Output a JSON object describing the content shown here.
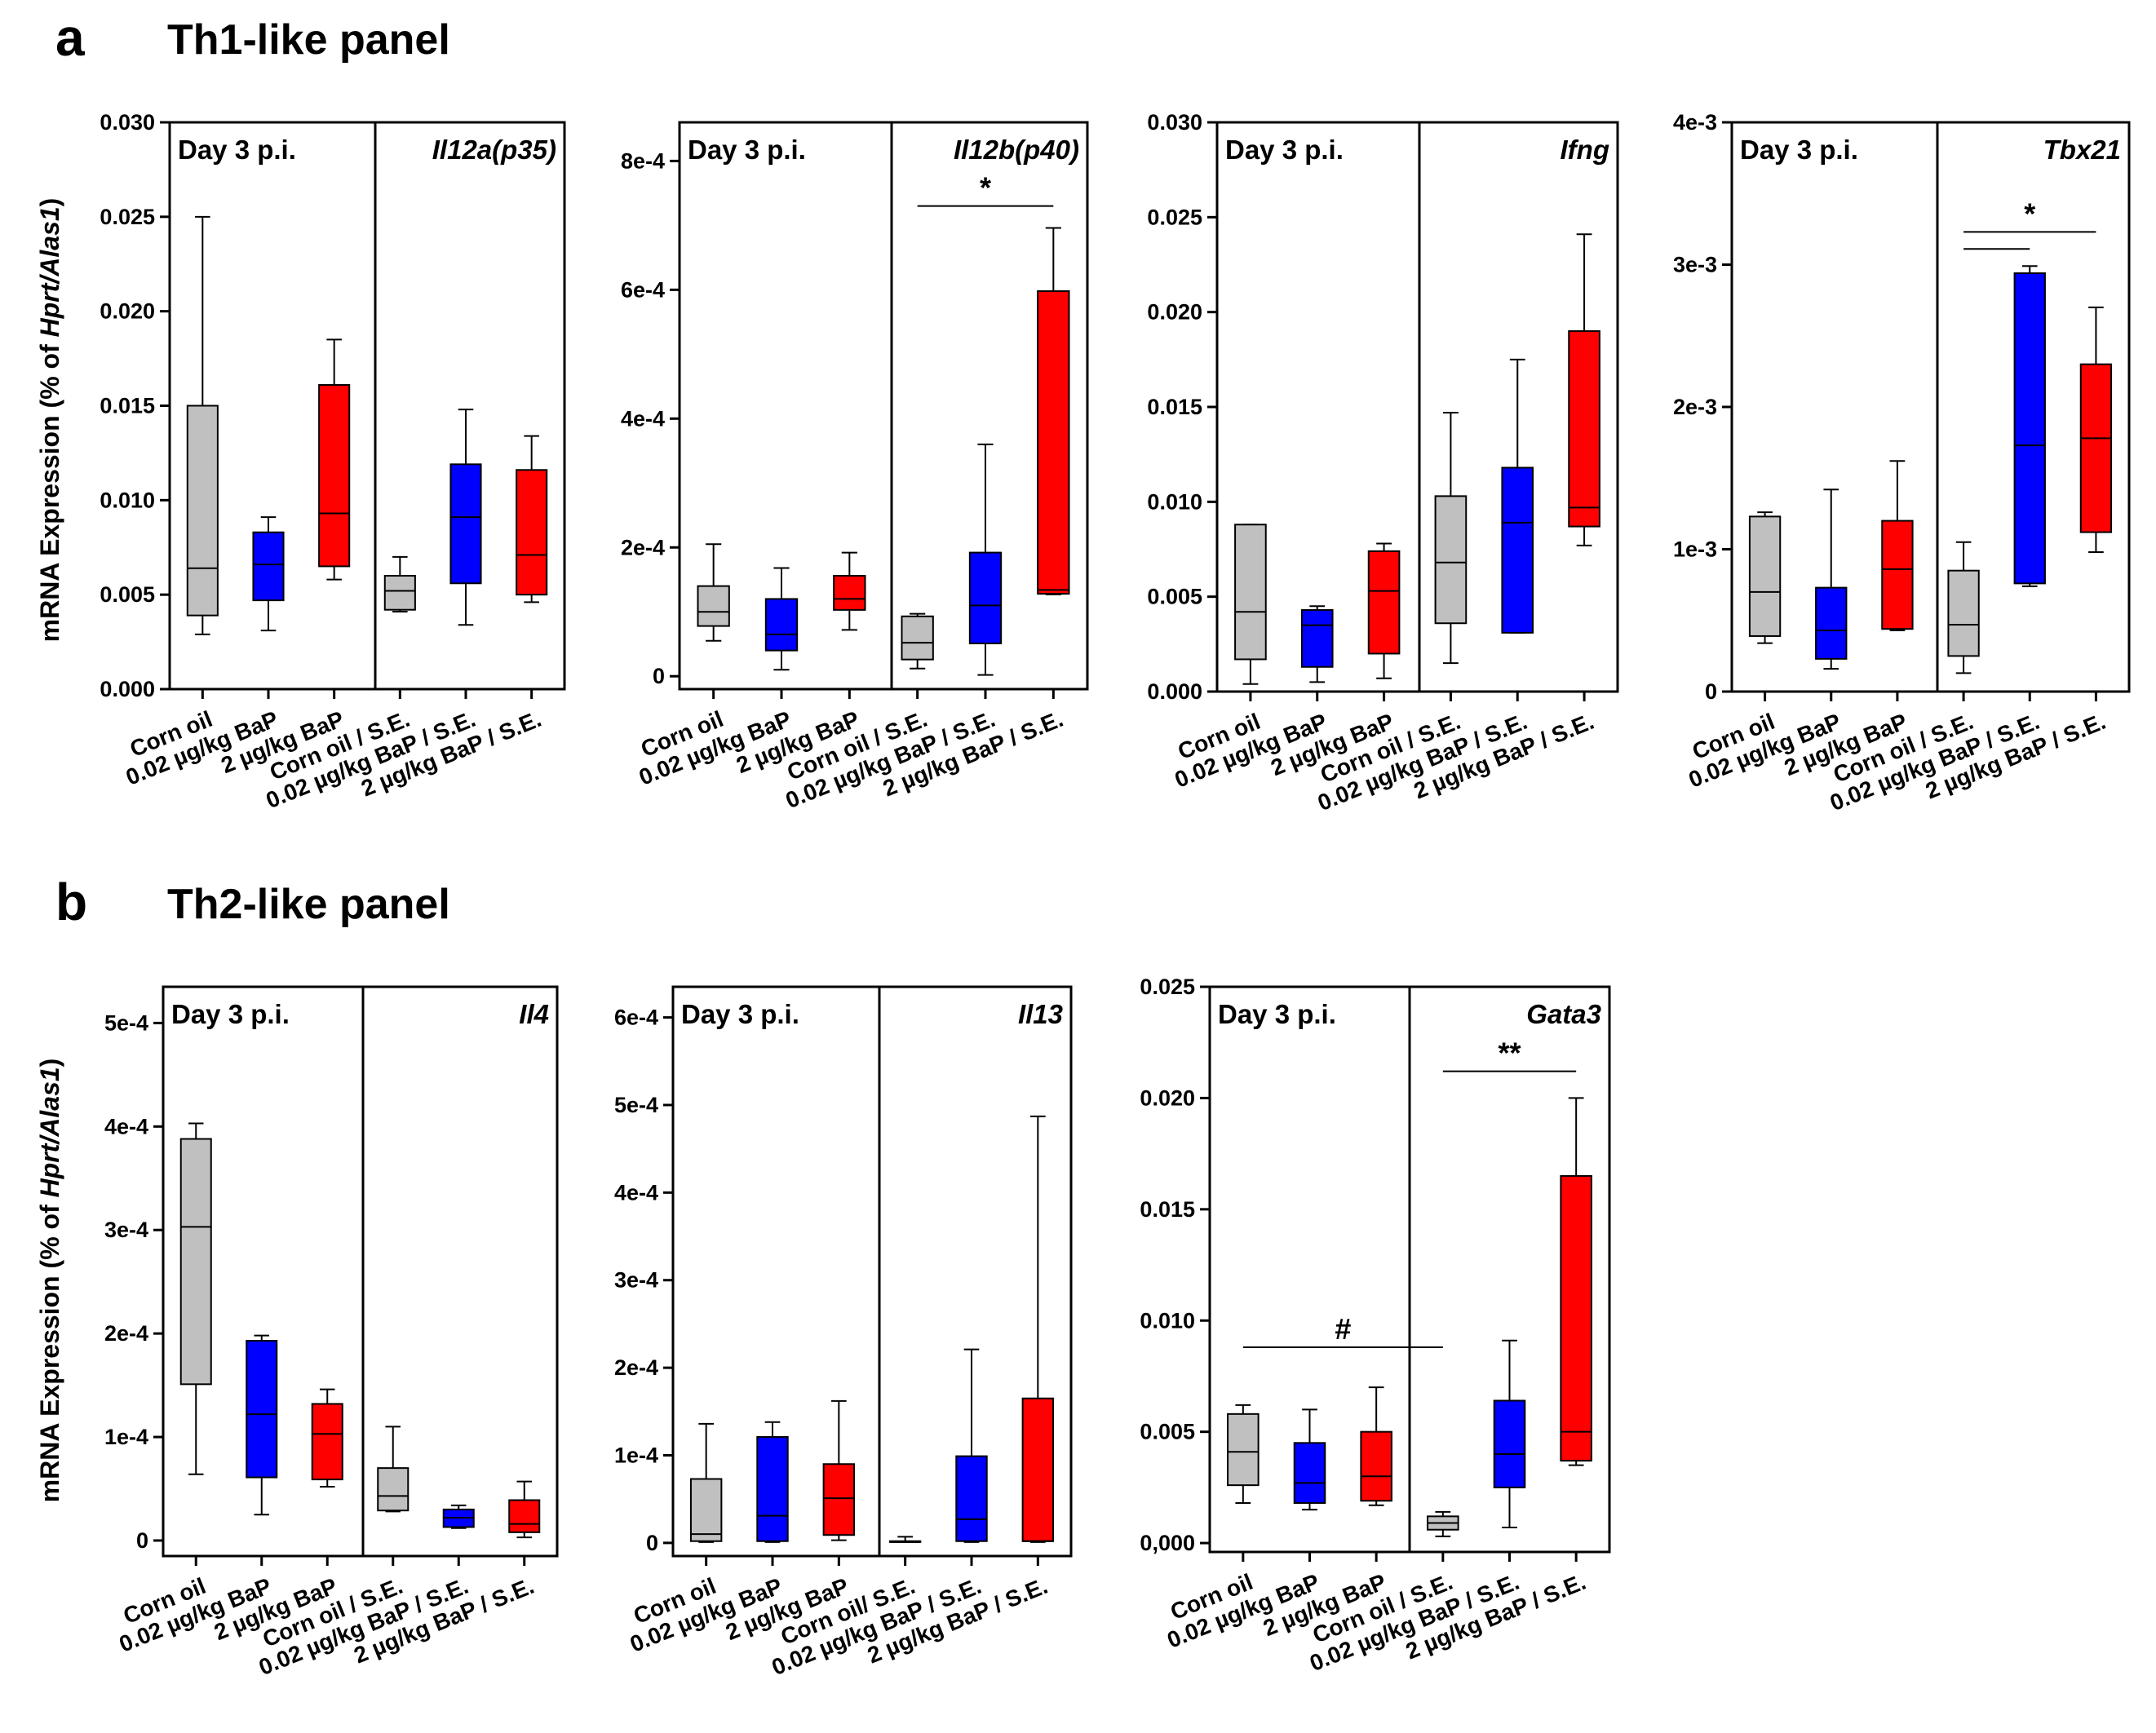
{
  "figure": {
    "panel_a": {
      "letter": "a",
      "title": "Th1-like panel"
    },
    "panel_b": {
      "letter": "b",
      "title": "Th2-like panel"
    },
    "ylabel": {
      "pre": "mRNA Expression (% of ",
      "italic": "Hprt/Alas1",
      "post": ")"
    },
    "colors": {
      "gray": "#c0c0c0",
      "blue": "#0000ff",
      "red": "#ff0000"
    }
  },
  "chart_data": [
    {
      "type": "box",
      "id": "il12a",
      "title": "Il12a(p35)",
      "day_label": "Day 3 p.i.",
      "ylim": [
        0,
        0.03
      ],
      "yticks": [
        0,
        0.005,
        0.01,
        0.015,
        0.02,
        0.025,
        0.03
      ],
      "ytick_labels": [
        "0.000",
        "0.005",
        "0.010",
        "0.015",
        "0.020",
        "0.025",
        "0.030"
      ],
      "categories": [
        "Corn oil",
        "0.02 µg/kg BaP",
        "2 µg/kg BaP",
        "Corn oil / S.E.",
        "0.02 µg/kg BaP / S.E.",
        "2 µg/kg BaP / S.E."
      ],
      "boxes": [
        {
          "min": 0.0029,
          "q1": 0.0039,
          "median": 0.0064,
          "q3": 0.015,
          "max": 0.025,
          "color": "gray"
        },
        {
          "min": 0.0031,
          "q1": 0.0047,
          "median": 0.0066,
          "q3": 0.0083,
          "max": 0.0091,
          "color": "blue"
        },
        {
          "min": 0.0058,
          "q1": 0.0065,
          "median": 0.0093,
          "q3": 0.0161,
          "max": 0.0185,
          "color": "red"
        },
        {
          "min": 0.0041,
          "q1": 0.0042,
          "median": 0.0052,
          "q3": 0.006,
          "max": 0.007,
          "color": "gray"
        },
        {
          "min": 0.0034,
          "q1": 0.0056,
          "median": 0.0091,
          "q3": 0.0119,
          "max": 0.0148,
          "color": "blue"
        },
        {
          "min": 0.0046,
          "q1": 0.005,
          "median": 0.0071,
          "q3": 0.0116,
          "max": 0.0134,
          "color": "red"
        }
      ],
      "annotations": []
    },
    {
      "type": "box",
      "id": "il12b",
      "title": "Il12b(p40)",
      "day_label": "Day 3 p.i.",
      "ylim": [
        -2e-05,
        0.00086
      ],
      "yticks": [
        0,
        0.0002,
        0.0004,
        0.0006,
        0.0008
      ],
      "ytick_labels": [
        "0",
        "2e-4",
        "4e-4",
        "6e-4",
        "8e-4"
      ],
      "categories": [
        "Corn oil",
        "0.02 µg/kg BaP",
        "2 µg/kg BaP",
        "Corn oil / S.E.",
        "0.02 µg/kg BaP / S.E.",
        "2 µg/kg BaP / S.E."
      ],
      "boxes": [
        {
          "min": 5.5e-05,
          "q1": 7.8e-05,
          "median": 0.0001,
          "q3": 0.00014,
          "max": 0.000205,
          "color": "gray"
        },
        {
          "min": 1e-05,
          "q1": 4e-05,
          "median": 6.5e-05,
          "q3": 0.00012,
          "max": 0.000168,
          "color": "blue"
        },
        {
          "min": 7.2e-05,
          "q1": 0.000103,
          "median": 0.00012,
          "q3": 0.000156,
          "max": 0.000192,
          "color": "red"
        },
        {
          "min": 1.2e-05,
          "q1": 2.6e-05,
          "median": 5.2e-05,
          "q3": 9.3e-05,
          "max": 9.7e-05,
          "color": "gray"
        },
        {
          "min": 2e-06,
          "q1": 5.1e-05,
          "median": 0.00011,
          "q3": 0.000192,
          "max": 0.00036,
          "color": "blue"
        },
        {
          "min": 0.000127,
          "q1": 0.000128,
          "median": 0.000134,
          "q3": 0.000598,
          "max": 0.000696,
          "color": "red"
        }
      ],
      "annotations": [
        {
          "text": "*",
          "from": 3,
          "to": 5,
          "y": 0.00073
        }
      ]
    },
    {
      "type": "box",
      "id": "ifng",
      "title": "Ifng",
      "day_label": "Day 3 p.i.",
      "ylim": [
        0,
        0.03
      ],
      "yticks": [
        0,
        0.005,
        0.01,
        0.015,
        0.02,
        0.025,
        0.03
      ],
      "ytick_labels": [
        "0.000",
        "0.005",
        "0.010",
        "0.015",
        "0.020",
        "0.025",
        "0.030"
      ],
      "categories": [
        "Corn oil",
        "0.02 µg/kg BaP",
        "2 µg/kg BaP",
        "Corn oil / S.E.",
        "0.02 µg/kg BaP / S.E.",
        "2 µg/kg BaP / S.E."
      ],
      "boxes": [
        {
          "min": 0.0004,
          "q1": 0.0017,
          "median": 0.0042,
          "q3": 0.0088,
          "max": 0.0088,
          "color": "gray"
        },
        {
          "min": 0.0005,
          "q1": 0.0013,
          "median": 0.0035,
          "q3": 0.0043,
          "max": 0.0045,
          "color": "blue"
        },
        {
          "min": 0.0007,
          "q1": 0.002,
          "median": 0.0053,
          "q3": 0.0074,
          "max": 0.0078,
          "color": "red"
        },
        {
          "min": 0.0015,
          "q1": 0.0036,
          "median": 0.0068,
          "q3": 0.0103,
          "max": 0.0147,
          "color": "gray"
        },
        {
          "min": 0.0031,
          "q1": 0.0031,
          "median": 0.0089,
          "q3": 0.0118,
          "max": 0.0175,
          "color": "blue"
        },
        {
          "min": 0.0077,
          "q1": 0.0087,
          "median": 0.0097,
          "q3": 0.019,
          "max": 0.0241,
          "color": "red"
        }
      ],
      "annotations": []
    },
    {
      "type": "box",
      "id": "tbx21",
      "title": "Tbx21",
      "day_label": "Day 3 p.i.",
      "ylim": [
        0,
        0.004
      ],
      "yticks": [
        0,
        0.001,
        0.002,
        0.003,
        0.004
      ],
      "ytick_labels": [
        "0",
        "1e-3",
        "2e-3",
        "3e-3",
        "4e-3"
      ],
      "categories": [
        "Corn oil",
        "0.02 µg/kg BaP",
        "2 µg/kg BaP",
        "Corn oil / S.E.",
        "0.02 µg/kg BaP / S.E.",
        "2 µg/kg BaP / S.E."
      ],
      "boxes": [
        {
          "min": 0.00034,
          "q1": 0.00039,
          "median": 0.0007,
          "q3": 0.00123,
          "max": 0.00126,
          "color": "gray"
        },
        {
          "min": 0.00016,
          "q1": 0.00023,
          "median": 0.00043,
          "q3": 0.00073,
          "max": 0.00142,
          "color": "blue"
        },
        {
          "min": 0.00043,
          "q1": 0.00044,
          "median": 0.00086,
          "q3": 0.0012,
          "max": 0.00162,
          "color": "red"
        },
        {
          "min": 0.00013,
          "q1": 0.00025,
          "median": 0.00047,
          "q3": 0.00085,
          "max": 0.00105,
          "color": "gray"
        },
        {
          "min": 0.00074,
          "q1": 0.00076,
          "median": 0.00173,
          "q3": 0.00294,
          "max": 0.00299,
          "color": "blue"
        },
        {
          "min": 0.00098,
          "q1": 0.00112,
          "median": 0.00178,
          "q3": 0.0023,
          "max": 0.0027,
          "color": "red"
        }
      ],
      "annotations": [
        {
          "text": "*",
          "from": 3,
          "to": 5,
          "y": 0.00323
        },
        {
          "text": "",
          "from": 3,
          "to": 4,
          "y": 0.00311
        }
      ]
    },
    {
      "type": "box",
      "id": "il4",
      "title": "Il4",
      "day_label": "Day 3 p.i.",
      "ylim": [
        -1.5e-05,
        0.000535
      ],
      "yticks": [
        0,
        0.0001,
        0.0002,
        0.0003,
        0.0004,
        0.0005
      ],
      "ytick_labels": [
        "0",
        "1e-4",
        "2e-4",
        "3e-4",
        "4e-4",
        "5e-4"
      ],
      "categories": [
        "Corn oil",
        "0.02 µg/kg BaP",
        "2 µg/kg BaP",
        "Corn oil / S.E.",
        "0.02 µg/kg BaP / S.E.",
        "2 µg/kg BaP / S.E."
      ],
      "boxes": [
        {
          "min": 6.4e-05,
          "q1": 0.000151,
          "median": 0.000303,
          "q3": 0.000388,
          "max": 0.000403,
          "color": "gray"
        },
        {
          "min": 2.5e-05,
          "q1": 6.1e-05,
          "median": 0.000122,
          "q3": 0.000193,
          "max": 0.000198,
          "color": "blue"
        },
        {
          "min": 5.2e-05,
          "q1": 5.9e-05,
          "median": 0.000103,
          "q3": 0.000132,
          "max": 0.000146,
          "color": "red"
        },
        {
          "min": 2.8e-05,
          "q1": 2.9e-05,
          "median": 4.3e-05,
          "q3": 7e-05,
          "max": 0.00011,
          "color": "gray"
        },
        {
          "min": 1.2e-05,
          "q1": 1.3e-05,
          "median": 2.2e-05,
          "q3": 3e-05,
          "max": 3.4e-05,
          "color": "blue"
        },
        {
          "min": 3e-06,
          "q1": 8e-06,
          "median": 1.6e-05,
          "q3": 3.9e-05,
          "max": 5.7e-05,
          "color": "red"
        }
      ],
      "annotations": []
    },
    {
      "type": "box",
      "id": "il13",
      "title": "Il13",
      "day_label": "Day 3 p.i.",
      "ylim": [
        -1.5e-05,
        0.000635
      ],
      "yticks": [
        0,
        0.0001,
        0.0002,
        0.0003,
        0.0004,
        0.0005,
        0.0006
      ],
      "ytick_labels": [
        "0",
        "1e-4",
        "2e-4",
        "3e-4",
        "4e-4",
        "5e-4",
        "6e-4"
      ],
      "categories": [
        "Corn oil",
        "0.02 µg/kg BaP",
        "2 µg/kg BaP",
        "Corn oil/ S.E.",
        "0.02 µg/kg BaP / S.E.",
        "2 µg/kg BaP / S.E."
      ],
      "boxes": [
        {
          "min": 1e-06,
          "q1": 2e-06,
          "median": 1e-05,
          "q3": 7.3e-05,
          "max": 0.000136,
          "color": "gray"
        },
        {
          "min": 1e-06,
          "q1": 2e-06,
          "median": 3.1e-05,
          "q3": 0.000121,
          "max": 0.000138,
          "color": "blue"
        },
        {
          "min": 3e-06,
          "q1": 9e-06,
          "median": 5.1e-05,
          "q3": 9e-05,
          "max": 0.000162,
          "color": "red"
        },
        {
          "min": 1e-06,
          "q1": 1e-06,
          "median": 1e-06,
          "q3": 2e-06,
          "max": 7e-06,
          "color": "gray"
        },
        {
          "min": 1e-06,
          "q1": 2e-06,
          "median": 2.7e-05,
          "q3": 9.9e-05,
          "max": 0.000221,
          "color": "blue"
        },
        {
          "min": 1e-06,
          "q1": 2e-06,
          "median": 2e-06,
          "q3": 0.000165,
          "max": 0.000487,
          "color": "red"
        }
      ],
      "annotations": []
    },
    {
      "type": "box",
      "id": "gata3",
      "title": "Gata3",
      "day_label": "Day 3 p.i.",
      "ylim": [
        -0.0004,
        0.025
      ],
      "yticks": [
        0,
        0.005,
        0.01,
        0.015,
        0.02,
        0.025
      ],
      "ytick_labels": [
        "0,000",
        "0.005",
        "0.010",
        "0.015",
        "0.020",
        "0.025"
      ],
      "categories": [
        "Corn oil",
        "0.02 µg/kg BaP",
        "2 µg/kg BaP",
        "Corn oil / S.E.",
        "0.02 µg/kg BaP / S.E.",
        "2 µg/kg BaP / S.E."
      ],
      "boxes": [
        {
          "min": 0.0018,
          "q1": 0.0026,
          "median": 0.0041,
          "q3": 0.0058,
          "max": 0.0062,
          "color": "gray"
        },
        {
          "min": 0.0015,
          "q1": 0.0018,
          "median": 0.0027,
          "q3": 0.0045,
          "max": 0.006,
          "color": "blue"
        },
        {
          "min": 0.0017,
          "q1": 0.0019,
          "median": 0.003,
          "q3": 0.005,
          "max": 0.007,
          "color": "red"
        },
        {
          "min": 0.0003,
          "q1": 0.0006,
          "median": 0.0009,
          "q3": 0.0012,
          "max": 0.0014,
          "color": "gray"
        },
        {
          "min": 0.0007,
          "q1": 0.0025,
          "median": 0.004,
          "q3": 0.0064,
          "max": 0.0091,
          "color": "blue"
        },
        {
          "min": 0.0035,
          "q1": 0.0037,
          "median": 0.005,
          "q3": 0.0165,
          "max": 0.02,
          "color": "red"
        }
      ],
      "annotations": [
        {
          "text": "#",
          "from": 0,
          "to": 3,
          "y": 0.0088
        },
        {
          "text": "**",
          "from": 3,
          "to": 5,
          "y": 0.0212
        }
      ]
    }
  ]
}
